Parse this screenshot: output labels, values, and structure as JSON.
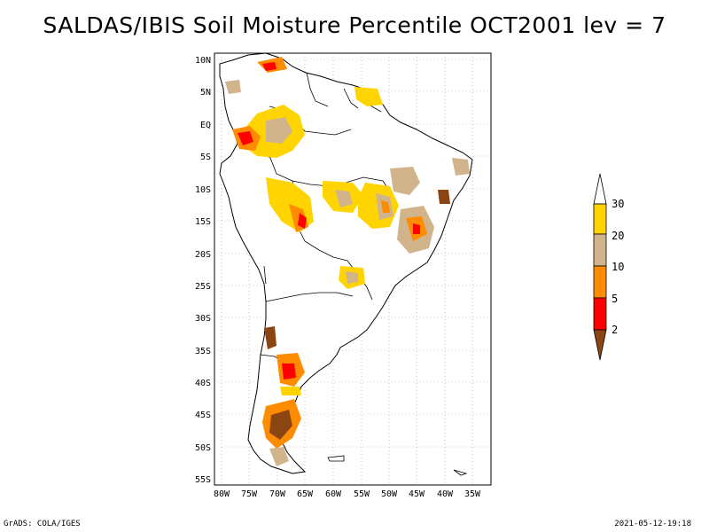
{
  "title": "SALDAS/IBIS Soil Moisture Percentile OCT2001 lev = 7",
  "axes": {
    "lat_labels": [
      "10N",
      "5N",
      "EQ",
      "5S",
      "10S",
      "15S",
      "20S",
      "25S",
      "30S",
      "35S",
      "40S",
      "45S",
      "50S",
      "55S"
    ],
    "lon_labels": [
      "80W",
      "75W",
      "70W",
      "65W",
      "60W",
      "55W",
      "50W",
      "45W",
      "40W",
      "35W"
    ]
  },
  "colorbar": {
    "labels": [
      "30",
      "20",
      "10",
      "5",
      "2"
    ],
    "colors": {
      "above30": "#ffffff",
      "20_30": "#ffd400",
      "10_20": "#d2b48c",
      "5_10": "#ff8c00",
      "2_5": "#ff0000",
      "below2": "#8b4513"
    }
  },
  "footer": {
    "left": "GrADS: COLA/IGES",
    "right": "2021-05-12-19:18"
  }
}
